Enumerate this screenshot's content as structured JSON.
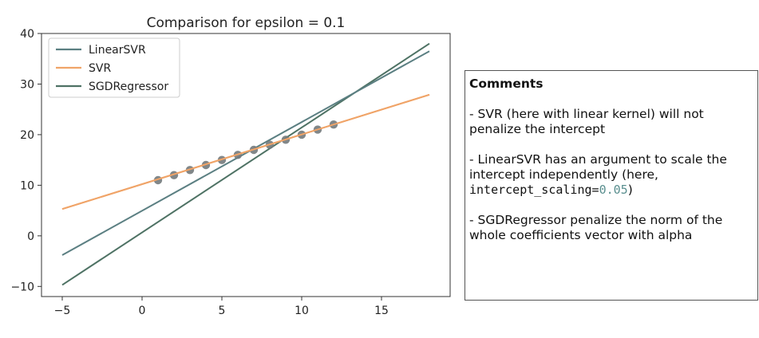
{
  "chart_data": {
    "type": "line",
    "title": "Comparison for epsilon = 0.1",
    "xlabel": "",
    "ylabel": "",
    "xlim": [
      -6.3,
      19.3
    ],
    "ylim": [
      -12,
      40
    ],
    "xticks": [
      -5,
      0,
      5,
      10,
      15
    ],
    "xtick_labels": [
      "−5",
      "0",
      "5",
      "10",
      "15"
    ],
    "yticks": [
      -10,
      0,
      10,
      20,
      30,
      40
    ],
    "ytick_labels": [
      "−10",
      "0",
      "10",
      "20",
      "30",
      "40"
    ],
    "grid": false,
    "legend_position": "top-left",
    "series": [
      {
        "name": "LinearSVR",
        "type": "line",
        "color": "#5b7f82",
        "x": [
          -5,
          18
        ],
        "y": [
          -3.8,
          36.5
        ]
      },
      {
        "name": "SVR",
        "type": "line",
        "color": "#f0a468",
        "x": [
          -5,
          18
        ],
        "y": [
          5.3,
          27.9
        ]
      },
      {
        "name": "SGDRegressor",
        "type": "line",
        "color": "#4e7264",
        "x": [
          -5,
          18
        ],
        "y": [
          -9.7,
          38.0
        ]
      },
      {
        "name": "",
        "type": "scatter",
        "color": "#737a7c",
        "x": [
          1,
          2,
          3,
          4,
          5,
          6,
          7,
          8,
          9,
          10,
          11,
          12
        ],
        "y": [
          11,
          12,
          13,
          14,
          15,
          16,
          17,
          18,
          19,
          20,
          21,
          22
        ]
      }
    ]
  },
  "comments": {
    "title": "Comments",
    "items": [
      {
        "text": "- SVR (here with linear kernel) will not penalize the intercept"
      },
      {
        "text": "- LinearSVR has an argument to scale the intercept independently (here, ",
        "code_name": "intercept_scaling=",
        "code_value": "0.05",
        "tail": ")"
      },
      {
        "text": "- SGDRegressor penalize the norm of the whole coefficients vector with alpha"
      }
    ]
  }
}
